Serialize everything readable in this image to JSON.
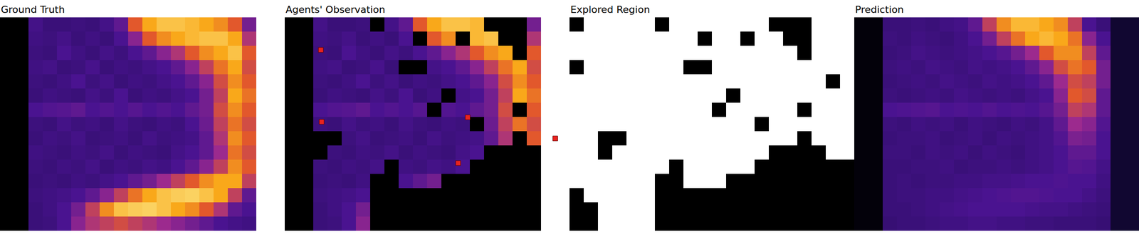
{
  "chart_data": [
    {
      "type": "heatmap",
      "title": "Ground Truth",
      "zlim": [
        0,
        1
      ],
      "tick_labels": false,
      "cells": [
        [
          0,
          0,
          0.28,
          0.25,
          0.25,
          0.26,
          0.25,
          0.28,
          0.35,
          0.7,
          0.85,
          0.9,
          0.9,
          0.88,
          0.85,
          0.8,
          0.7,
          0.4,
          null,
          null
        ],
        [
          0,
          0,
          0.27,
          0.26,
          0.28,
          0.25,
          0.27,
          0.25,
          0.3,
          0.45,
          0.7,
          0.8,
          0.85,
          0.88,
          0.9,
          0.9,
          0.85,
          0.55,
          null,
          null
        ],
        [
          0,
          0,
          0.26,
          0.25,
          0.3,
          0.27,
          0.25,
          0.28,
          0.26,
          0.3,
          0.35,
          0.45,
          0.55,
          0.7,
          0.8,
          0.85,
          0.9,
          0.7,
          null,
          null
        ],
        [
          0,
          0,
          0.27,
          0.28,
          0.25,
          0.26,
          0.29,
          0.25,
          0.27,
          0.26,
          0.28,
          0.3,
          0.35,
          0.45,
          0.6,
          0.75,
          0.85,
          0.65,
          null,
          null
        ],
        [
          0,
          0,
          0.26,
          0.25,
          0.27,
          0.3,
          0.26,
          0.28,
          0.25,
          0.27,
          0.26,
          0.28,
          0.3,
          0.35,
          0.45,
          0.65,
          0.8,
          0.7,
          null,
          null
        ],
        [
          0,
          0,
          0.25,
          0.27,
          0.26,
          0.25,
          0.28,
          0.26,
          0.3,
          0.25,
          0.27,
          0.26,
          0.28,
          0.3,
          0.4,
          0.6,
          0.85,
          0.75,
          null,
          null
        ],
        [
          0,
          0,
          0.3,
          0.32,
          0.33,
          0.35,
          0.3,
          0.32,
          0.3,
          0.33,
          0.3,
          0.32,
          0.3,
          0.35,
          0.4,
          0.65,
          0.8,
          0.7,
          null,
          null
        ],
        [
          0,
          0,
          0.26,
          0.25,
          0.28,
          0.26,
          0.27,
          0.25,
          0.28,
          0.26,
          0.25,
          0.27,
          0.26,
          0.3,
          0.38,
          0.6,
          0.75,
          0.65,
          null,
          null
        ],
        [
          0,
          0,
          0.25,
          0.27,
          0.26,
          0.28,
          0.25,
          0.26,
          0.27,
          0.25,
          0.28,
          0.26,
          0.27,
          0.28,
          0.35,
          0.55,
          0.8,
          0.7,
          null,
          null
        ],
        [
          0,
          0,
          0.27,
          0.26,
          0.25,
          0.27,
          0.26,
          0.28,
          0.25,
          0.27,
          0.26,
          0.25,
          0.28,
          0.3,
          0.35,
          0.5,
          0.75,
          0.65,
          null,
          null
        ],
        [
          0,
          0,
          0.26,
          0.25,
          0.27,
          0.26,
          0.28,
          0.25,
          0.27,
          0.26,
          0.28,
          0.27,
          0.3,
          0.35,
          0.45,
          0.6,
          0.8,
          0.7,
          null,
          null
        ],
        [
          0,
          0,
          0.25,
          0.26,
          0.25,
          0.27,
          0.26,
          0.28,
          0.3,
          0.35,
          0.4,
          0.5,
          0.6,
          0.7,
          0.8,
          0.85,
          0.85,
          0.6,
          null,
          null
        ],
        [
          0,
          0,
          0.26,
          0.27,
          0.28,
          0.3,
          0.35,
          0.45,
          0.6,
          0.75,
          0.85,
          0.9,
          0.92,
          0.93,
          0.9,
          0.85,
          0.6,
          0.35,
          null,
          null
        ],
        [
          0,
          0,
          0.25,
          0.27,
          0.3,
          0.4,
          0.6,
          0.8,
          0.9,
          0.92,
          0.93,
          0.9,
          0.85,
          0.8,
          0.7,
          0.55,
          0.35,
          0.3,
          null,
          null
        ],
        [
          0,
          0,
          0.25,
          0.26,
          0.3,
          0.45,
          0.55,
          0.6,
          0.65,
          0.6,
          0.55,
          0.5,
          0.45,
          0.4,
          0.35,
          0.3,
          0.28,
          0.27,
          null,
          null
        ]
      ]
    },
    {
      "type": "heatmap",
      "title": "Agents' Observation",
      "zlim": [
        0,
        1
      ],
      "tick_labels": false,
      "cells": [
        [
          0,
          0,
          0.28,
          0.25,
          0.25,
          0.26,
          0,
          0.28,
          0.35,
          0.7,
          0.85,
          0.9,
          0.9,
          0.88,
          0,
          0,
          0,
          0.4,
          null,
          null
        ],
        [
          0,
          0,
          0.27,
          0.26,
          0.28,
          0.25,
          0.27,
          0.25,
          0.3,
          0,
          0.7,
          0.8,
          0,
          0.88,
          0.9,
          0,
          0,
          0.55,
          null,
          null
        ],
        [
          0,
          0,
          0.26,
          0.25,
          0.3,
          0.27,
          0.25,
          0.28,
          0.26,
          0.3,
          0.35,
          0.45,
          0.55,
          0.7,
          0.8,
          0.85,
          0,
          0.7,
          null,
          null
        ],
        [
          0,
          0,
          0.27,
          0.28,
          0.25,
          0.26,
          0.29,
          0.25,
          0,
          0,
          0.28,
          0.3,
          0.35,
          0.45,
          0.6,
          0.75,
          0.85,
          0.65,
          null,
          null
        ],
        [
          0,
          0,
          0.26,
          0.25,
          0.27,
          0.3,
          0.26,
          0.28,
          0.25,
          0.27,
          0.26,
          0.28,
          0.3,
          0.35,
          0.45,
          0.65,
          0.8,
          0.7,
          null,
          null
        ],
        [
          0,
          0,
          0.25,
          0.27,
          0.26,
          0.25,
          0.28,
          0.26,
          0.3,
          0.25,
          0.27,
          0,
          0.28,
          0.3,
          0.4,
          0.6,
          0.85,
          0.75,
          null,
          null
        ],
        [
          0,
          0,
          0.3,
          0.32,
          0.33,
          0.35,
          0.3,
          0.32,
          0.3,
          0.33,
          0,
          0.32,
          0.3,
          0.35,
          0.4,
          0.65,
          0,
          0.7,
          null,
          null
        ],
        [
          0,
          0,
          0.26,
          0.25,
          0.28,
          0.26,
          0.27,
          0.25,
          0.28,
          0.26,
          0.25,
          0.27,
          0.26,
          0,
          0.38,
          0.6,
          0.75,
          0.65,
          null,
          null
        ],
        [
          0,
          0,
          0,
          0,
          0.26,
          0.28,
          0.25,
          0.26,
          0.27,
          0.25,
          0.28,
          0.26,
          0.27,
          0.28,
          0.35,
          0.55,
          0,
          0.7,
          null,
          null
        ],
        [
          0,
          0,
          0,
          0.26,
          0.25,
          0.27,
          0.26,
          0.28,
          0.25,
          0.27,
          0.26,
          0.25,
          0.28,
          0.3,
          0,
          0,
          0,
          0,
          null,
          null
        ],
        [
          0,
          0,
          0.26,
          0.25,
          0.27,
          0.26,
          0.28,
          0,
          0.27,
          0.26,
          0.28,
          0.27,
          0.3,
          0,
          0,
          0,
          0,
          0,
          null,
          null
        ],
        [
          0,
          0,
          0.25,
          0.26,
          0.25,
          0.27,
          0,
          0,
          0.3,
          0.35,
          0.4,
          0,
          0,
          0,
          0,
          0,
          0,
          0,
          null,
          null
        ],
        [
          0,
          0,
          0.26,
          0.27,
          0.28,
          0.3,
          0,
          0,
          0,
          0,
          0,
          0,
          0,
          0,
          0,
          0,
          0,
          0,
          null,
          null
        ],
        [
          0,
          0,
          0.25,
          0.27,
          0.3,
          0.4,
          0,
          0,
          0,
          0,
          0,
          0,
          0,
          0,
          0,
          0,
          0,
          0,
          null,
          null
        ],
        [
          0,
          0,
          0.25,
          0.26,
          0.3,
          0.45,
          0,
          0,
          0,
          0,
          0,
          0,
          0,
          0,
          0,
          0,
          0,
          0,
          null,
          null
        ]
      ],
      "agents": {
        "x": [
          2.04,
          2.09,
          12.35,
          11.68,
          18.5
        ],
        "y": [
          1.79,
          6.84,
          6.53,
          9.74,
          8.01
        ],
        "color": "#e8231f",
        "marker": "square"
      }
    },
    {
      "type": "mask",
      "title": "Explored Region",
      "zlim": [
        0,
        1
      ],
      "tick_labels": false,
      "cells": [
        [
          0,
          1,
          1,
          1,
          1,
          1,
          0,
          1,
          1,
          1,
          1,
          1,
          1,
          1,
          0,
          0,
          0,
          1,
          1,
          1
        ],
        [
          1,
          1,
          1,
          1,
          1,
          1,
          1,
          1,
          1,
          0,
          1,
          1,
          0,
          1,
          1,
          0,
          0,
          1,
          1,
          1
        ],
        [
          1,
          1,
          1,
          1,
          1,
          1,
          1,
          1,
          1,
          1,
          1,
          1,
          1,
          1,
          1,
          1,
          0,
          1,
          1,
          1
        ],
        [
          0,
          1,
          1,
          1,
          1,
          1,
          1,
          1,
          0,
          0,
          1,
          1,
          1,
          1,
          1,
          1,
          1,
          1,
          1,
          1
        ],
        [
          1,
          1,
          1,
          1,
          1,
          1,
          1,
          1,
          1,
          1,
          1,
          1,
          1,
          1,
          1,
          1,
          1,
          1,
          0,
          1
        ],
        [
          1,
          1,
          1,
          1,
          1,
          1,
          1,
          1,
          1,
          1,
          1,
          0,
          1,
          1,
          1,
          1,
          1,
          1,
          1,
          1
        ],
        [
          1,
          1,
          1,
          1,
          1,
          1,
          1,
          1,
          1,
          1,
          0,
          1,
          1,
          1,
          1,
          1,
          0,
          1,
          1,
          1
        ],
        [
          1,
          1,
          1,
          1,
          1,
          1,
          1,
          1,
          1,
          1,
          1,
          1,
          1,
          0,
          1,
          1,
          1,
          1,
          1,
          1
        ],
        [
          1,
          1,
          0,
          0,
          1,
          1,
          1,
          1,
          1,
          1,
          1,
          1,
          1,
          1,
          1,
          1,
          0,
          1,
          1,
          1
        ],
        [
          1,
          1,
          0,
          1,
          1,
          1,
          1,
          1,
          1,
          1,
          1,
          1,
          1,
          1,
          0,
          0,
          0,
          0,
          1,
          1
        ],
        [
          1,
          1,
          1,
          1,
          1,
          1,
          1,
          0,
          1,
          1,
          1,
          1,
          1,
          0,
          0,
          0,
          0,
          0,
          0,
          0
        ],
        [
          1,
          1,
          1,
          1,
          1,
          1,
          0,
          0,
          1,
          1,
          1,
          0,
          0,
          0,
          0,
          0,
          0,
          0,
          0,
          0
        ],
        [
          0,
          1,
          1,
          1,
          1,
          1,
          0,
          0,
          0,
          0,
          0,
          0,
          0,
          0,
          0,
          0,
          0,
          0,
          0,
          0
        ],
        [
          0,
          0,
          1,
          1,
          1,
          1,
          0,
          0,
          0,
          0,
          0,
          0,
          0,
          0,
          0,
          0,
          0,
          0,
          0,
          0
        ],
        [
          0,
          0,
          1,
          1,
          1,
          1,
          0,
          0,
          0,
          0,
          0,
          0,
          0,
          0,
          0,
          0,
          0,
          0,
          0,
          0
        ]
      ]
    },
    {
      "type": "heatmap",
      "title": "Prediction",
      "zlim": [
        0,
        1
      ],
      "tick_labels": false,
      "cells": [
        [
          0.02,
          0.02,
          0.25,
          0.25,
          0.26,
          0.25,
          0.27,
          0.28,
          0.35,
          0.6,
          0.8,
          0.88,
          0.88,
          0.85,
          0.8,
          0.6,
          0.3,
          0.25,
          0.1,
          0.1
        ],
        [
          0.02,
          0.02,
          0.26,
          0.25,
          0.27,
          0.26,
          0.25,
          0.27,
          0.3,
          0.4,
          0.6,
          0.75,
          0.85,
          0.88,
          0.85,
          0.75,
          0.45,
          0.3,
          0.1,
          0.1
        ],
        [
          0.02,
          0.02,
          0.25,
          0.26,
          0.28,
          0.27,
          0.26,
          0.27,
          0.28,
          0.3,
          0.33,
          0.4,
          0.5,
          0.7,
          0.8,
          0.8,
          0.6,
          0.35,
          0.1,
          0.1
        ],
        [
          0.02,
          0.02,
          0.26,
          0.27,
          0.26,
          0.28,
          0.27,
          0.26,
          0.28,
          0.27,
          0.28,
          0.3,
          0.35,
          0.45,
          0.65,
          0.75,
          0.7,
          0.4,
          0.1,
          0.1
        ],
        [
          0.02,
          0.02,
          0.25,
          0.26,
          0.27,
          0.26,
          0.28,
          0.27,
          0.26,
          0.28,
          0.27,
          0.28,
          0.3,
          0.35,
          0.5,
          0.65,
          0.6,
          0.4,
          0.1,
          0.1
        ],
        [
          0.02,
          0.02,
          0.26,
          0.25,
          0.26,
          0.27,
          0.26,
          0.28,
          0.27,
          0.26,
          0.27,
          0.26,
          0.28,
          0.3,
          0.45,
          0.7,
          0.65,
          0.35,
          0.1,
          0.1
        ],
        [
          0.02,
          0.02,
          0.3,
          0.31,
          0.32,
          0.33,
          0.3,
          0.31,
          0.3,
          0.32,
          0.3,
          0.31,
          0.3,
          0.33,
          0.4,
          0.6,
          0.55,
          0.35,
          0.1,
          0.1
        ],
        [
          0.02,
          0.02,
          0.26,
          0.25,
          0.27,
          0.26,
          0.27,
          0.25,
          0.27,
          0.26,
          0.25,
          0.27,
          0.26,
          0.28,
          0.35,
          0.5,
          0.45,
          0.32,
          0.1,
          0.1
        ],
        [
          0.02,
          0.02,
          0.25,
          0.26,
          0.26,
          0.27,
          0.25,
          0.26,
          0.27,
          0.25,
          0.27,
          0.26,
          0.27,
          0.28,
          0.32,
          0.42,
          0.4,
          0.3,
          0.1,
          0.1
        ],
        [
          0.02,
          0.02,
          0.26,
          0.26,
          0.25,
          0.27,
          0.26,
          0.27,
          0.25,
          0.27,
          0.26,
          0.25,
          0.27,
          0.28,
          0.3,
          0.35,
          0.35,
          0.3,
          0.1,
          0.1
        ],
        [
          0.02,
          0.02,
          0.25,
          0.25,
          0.26,
          0.26,
          0.27,
          0.25,
          0.26,
          0.26,
          0.27,
          0.26,
          0.27,
          0.28,
          0.3,
          0.33,
          0.32,
          0.28,
          0.1,
          0.1
        ],
        [
          0.02,
          0.02,
          0.25,
          0.26,
          0.25,
          0.26,
          0.26,
          0.27,
          0.27,
          0.28,
          0.28,
          0.29,
          0.3,
          0.3,
          0.31,
          0.3,
          0.3,
          0.27,
          0.1,
          0.1
        ],
        [
          0.02,
          0.02,
          0.25,
          0.26,
          0.26,
          0.27,
          0.27,
          0.28,
          0.29,
          0.3,
          0.31,
          0.32,
          0.32,
          0.31,
          0.3,
          0.3,
          0.28,
          0.26,
          0.1,
          0.1
        ],
        [
          0.02,
          0.02,
          0.25,
          0.25,
          0.26,
          0.27,
          0.28,
          0.29,
          0.3,
          0.3,
          0.3,
          0.3,
          0.29,
          0.28,
          0.28,
          0.27,
          0.26,
          0.25,
          0.1,
          0.1
        ],
        [
          0.02,
          0.02,
          0.24,
          0.25,
          0.25,
          0.26,
          0.27,
          0.27,
          0.28,
          0.28,
          0.27,
          0.27,
          0.26,
          0.26,
          0.25,
          0.25,
          0.25,
          0.24,
          0.1,
          0.1
        ]
      ]
    }
  ]
}
